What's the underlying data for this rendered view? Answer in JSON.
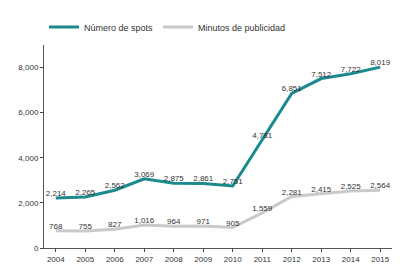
{
  "chart_data": {
    "type": "line",
    "categories": [
      "2004",
      "2005",
      "2006",
      "2007",
      "2008",
      "2009",
      "2010",
      "2011",
      "2012",
      "2013",
      "2014",
      "2015"
    ],
    "series": [
      {
        "name": "Número de spots",
        "color": "#1a8a8c",
        "values": [
          2214,
          2265,
          2562,
          3069,
          2875,
          2861,
          2751,
          4781,
          6851,
          7512,
          7722,
          8019
        ],
        "value_labels": [
          "2,214",
          "2,265",
          "2,562",
          "3,069",
          "2,875",
          "2,861",
          "2,751",
          "4,781",
          "6,851",
          "7,512",
          "7,722",
          "8,019"
        ]
      },
      {
        "name": "Minutos de publicidad",
        "color": "#c9c9c9",
        "values": [
          768,
          755,
          827,
          1016,
          964,
          971,
          905,
          1559,
          2281,
          2415,
          2525,
          2564
        ],
        "value_labels": [
          "768",
          "755",
          "827",
          "1,016",
          "964",
          "971",
          "905",
          "1,559",
          "2,281",
          "2,415",
          "2,525",
          "2,564"
        ]
      }
    ],
    "ylim": [
      0,
      9000
    ],
    "yticks": [
      0,
      {
        "value": 2000,
        "label": "2,000"
      },
      {
        "value": 4000,
        "label": "4,000"
      },
      {
        "value": 6000,
        "label": "6,000"
      },
      {
        "value": 8000,
        "label": "8,000"
      }
    ],
    "grid": false,
    "legend": "top-left",
    "data_labels": true
  }
}
